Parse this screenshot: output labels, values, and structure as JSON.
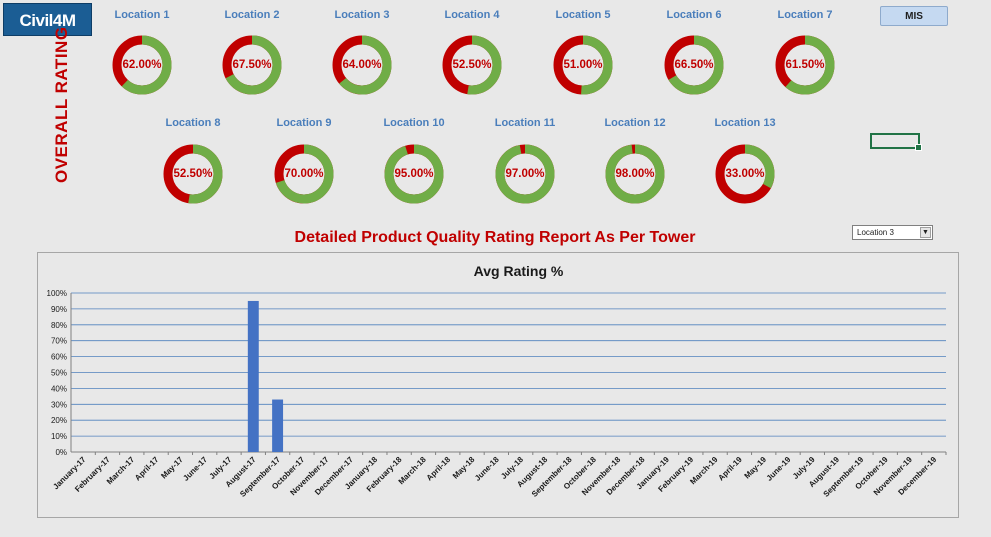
{
  "app": {
    "logo_text": "Civil4M",
    "mis_button": "MIS"
  },
  "overall": {
    "side_label": "OVERALL RATING",
    "locations": [
      {
        "name": "Location 1",
        "pct": 62.0,
        "label": "62.00%"
      },
      {
        "name": "Location 2",
        "pct": 67.5,
        "label": "67.50%"
      },
      {
        "name": "Location 3",
        "pct": 64.0,
        "label": "64.00%"
      },
      {
        "name": "Location 4",
        "pct": 52.5,
        "label": "52.50%"
      },
      {
        "name": "Location 5",
        "pct": 51.0,
        "label": "51.00%"
      },
      {
        "name": "Location 6",
        "pct": 66.5,
        "label": "66.50%"
      },
      {
        "name": "Location 7",
        "pct": 61.5,
        "label": "61.50%"
      },
      {
        "name": "Location 8",
        "pct": 52.5,
        "label": "52.50%"
      },
      {
        "name": "Location 9",
        "pct": 70.0,
        "label": "70.00%"
      },
      {
        "name": "Location 10",
        "pct": 95.0,
        "label": "95.00%"
      },
      {
        "name": "Location 11",
        "pct": 97.0,
        "label": "97.00%"
      },
      {
        "name": "Location 12",
        "pct": 98.0,
        "label": "98.00%"
      },
      {
        "name": "Location 13",
        "pct": 33.0,
        "label": "33.00%"
      }
    ],
    "good_color": "#70ad47",
    "bad_color": "#c00000"
  },
  "report": {
    "title": "Detailed Product Quality Rating Report As Per Tower",
    "selected_location": "Location 3"
  },
  "chart_data": {
    "type": "bar",
    "title": "Avg Rating %",
    "xlabel": "",
    "ylabel": "",
    "ylim": [
      0,
      100
    ],
    "yticks": [
      "0%",
      "10%",
      "20%",
      "30%",
      "40%",
      "50%",
      "60%",
      "70%",
      "80%",
      "90%",
      "100%"
    ],
    "grid": true,
    "bar_color": "#4472c4",
    "categories": [
      "January-17",
      "February-17",
      "March-17",
      "April-17",
      "May-17",
      "June-17",
      "July-17",
      "August-17",
      "September-17",
      "October-17",
      "November-17",
      "December-17",
      "January-18",
      "February-18",
      "March-18",
      "April-18",
      "May-18",
      "June-18",
      "July-18",
      "August-18",
      "September-18",
      "October-18",
      "November-18",
      "December-18",
      "January-19",
      "February-19",
      "March-19",
      "April-19",
      "May-19",
      "June-19",
      "July-19",
      "August-19",
      "September-19",
      "October-19",
      "November-19",
      "December-19"
    ],
    "values": [
      0,
      0,
      0,
      0,
      0,
      0,
      0,
      95,
      33,
      0,
      0,
      0,
      0,
      0,
      0,
      0,
      0,
      0,
      0,
      0,
      0,
      0,
      0,
      0,
      0,
      0,
      0,
      0,
      0,
      0,
      0,
      0,
      0,
      0,
      0,
      0
    ]
  }
}
